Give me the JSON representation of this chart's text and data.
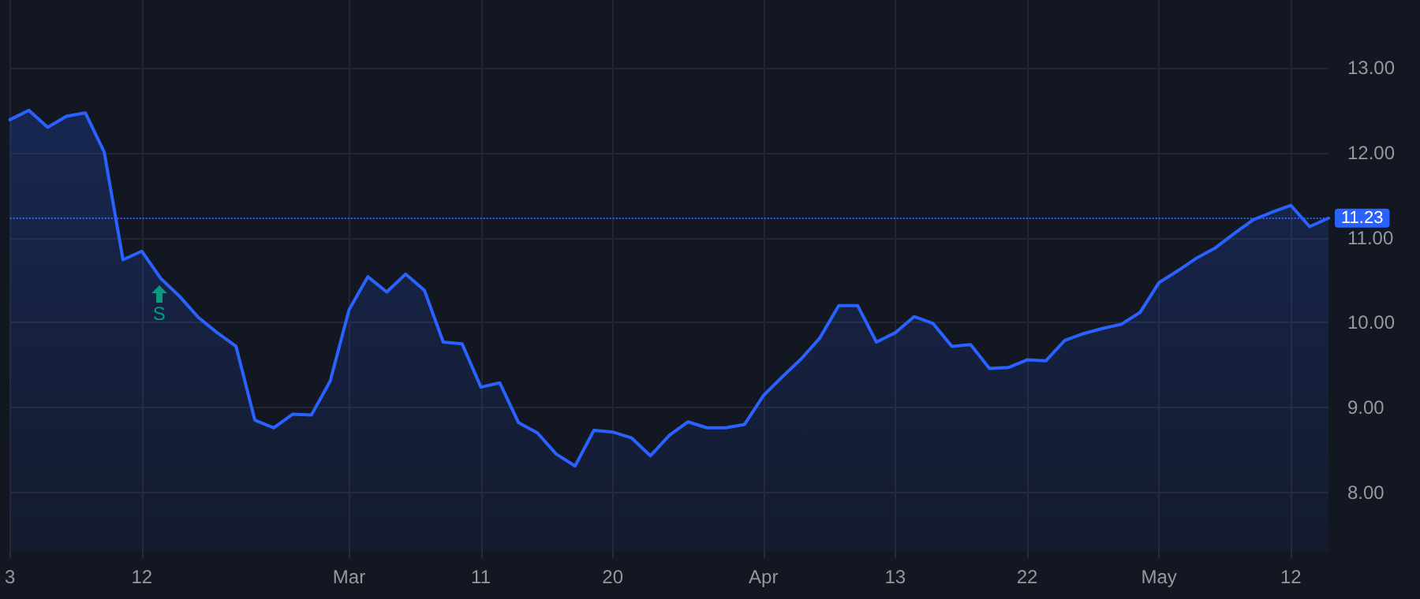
{
  "chart_data": {
    "type": "area",
    "categories": [
      "3",
      null,
      null,
      null,
      null,
      null,
      null,
      "12",
      null,
      null,
      null,
      null,
      null,
      null,
      null,
      null,
      null,
      null,
      "Mar",
      null,
      null,
      null,
      null,
      null,
      null,
      "11",
      null,
      null,
      null,
      null,
      null,
      null,
      "20",
      null,
      null,
      null,
      null,
      null,
      null,
      null,
      "Apr",
      null,
      null,
      null,
      null,
      null,
      null,
      "13",
      null,
      null,
      null,
      null,
      null,
      null,
      "22",
      null,
      null,
      null,
      null,
      null,
      null,
      "May",
      null,
      null,
      null,
      null,
      null,
      null,
      "12",
      null,
      null
    ],
    "series": [
      {
        "color": "#2962ff",
        "values": [
          12.39,
          12.5,
          12.3,
          12.43,
          12.47,
          12.01,
          10.74,
          10.84,
          10.52,
          10.31,
          10.06,
          9.88,
          9.72,
          8.85,
          8.76,
          8.92,
          8.91,
          9.31,
          10.15,
          10.54,
          10.36,
          10.57,
          10.38,
          9.77,
          9.75,
          9.24,
          9.29,
          8.82,
          8.7,
          8.45,
          8.31,
          8.73,
          8.71,
          8.64,
          8.43,
          8.67,
          8.83,
          8.76,
          8.76,
          8.8,
          9.14,
          9.36,
          9.57,
          9.82,
          10.2,
          10.2,
          9.77,
          9.88,
          10.07,
          9.99,
          9.72,
          9.74,
          9.46,
          9.47,
          9.56,
          9.55,
          9.79,
          9.87,
          9.93,
          9.98,
          10.12,
          10.47,
          10.61,
          10.76,
          10.88,
          11.05,
          11.21,
          11.3,
          11.38,
          11.13,
          11.23
        ]
      }
    ],
    "ylim": [
      7.3,
      13.8
    ],
    "yticks": [
      {
        "value": 8,
        "label": "8.00"
      },
      {
        "value": 9,
        "label": "9.00"
      },
      {
        "value": 10,
        "label": "10.00"
      },
      {
        "value": 11,
        "label": "11.00"
      },
      {
        "value": 12,
        "label": "12.00"
      },
      {
        "value": 13,
        "label": "13.00"
      }
    ],
    "ref_lines": [
      {
        "axis": "y",
        "value": 11.23,
        "label": "11.23",
        "color": "#2962ff",
        "line_style": "dotted"
      }
    ],
    "annotations": [
      "S"
    ],
    "grid": true,
    "marker": "none",
    "line_style": "solid"
  }
}
